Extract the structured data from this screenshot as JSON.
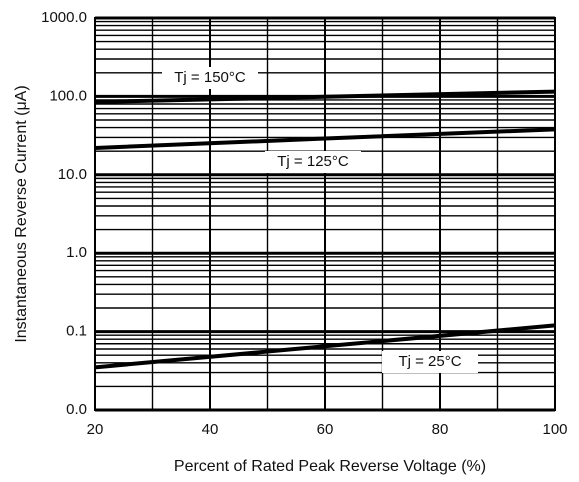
{
  "chart_data": {
    "type": "line",
    "xlabel": "Percent of Rated Peak Reverse Voltage (%)",
    "ylabel": "Instantaneous Reverse Current (μA)",
    "x": [
      20,
      60,
      100
    ],
    "series": [
      {
        "name": "Tj = 150°C",
        "color": "#000000",
        "values": [
          85,
          99,
          115
        ]
      },
      {
        "name": "Tj = 125°C",
        "color": "#000000",
        "values": [
          22,
          29,
          38
        ]
      },
      {
        "name": "Tj = 25°C",
        "color": "#000000",
        "values": [
          0.035,
          0.065,
          0.12
        ]
      }
    ],
    "xlim": [
      20,
      100
    ],
    "xticks": [
      20,
      40,
      60,
      80,
      100
    ],
    "x_minor_ticks": [
      30,
      50,
      70,
      90
    ],
    "ylim": [
      0.01,
      1000
    ],
    "ylog": true,
    "yticks": [
      {
        "value": 0.01,
        "label": "0.0"
      },
      0.1,
      {
        "value": 1,
        "label": "1.0"
      },
      {
        "value": 10,
        "label": "10.0"
      },
      {
        "value": 100,
        "label": "100.0"
      },
      {
        "value": 1000,
        "label": "1000.0"
      }
    ],
    "y_minor_ticks": [
      0.02,
      0.03,
      0.04,
      0.05,
      0.06,
      0.07,
      0.08,
      0.09,
      0.2,
      0.3,
      0.4,
      0.5,
      0.6,
      0.7,
      0.8,
      0.9,
      2,
      3,
      4,
      5,
      6,
      7,
      8,
      9,
      20,
      30,
      40,
      50,
      60,
      70,
      80,
      90,
      200,
      300,
      400,
      500,
      600,
      700,
      800,
      900
    ],
    "grid": true
  }
}
